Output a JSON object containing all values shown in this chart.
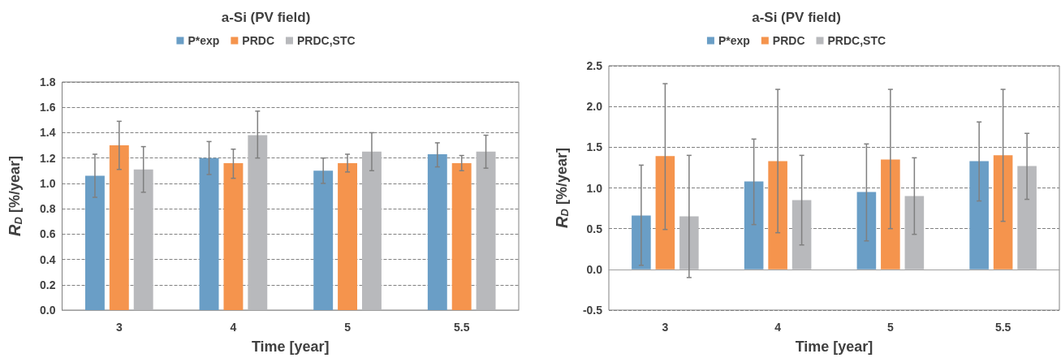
{
  "chart_data": [
    {
      "type": "bar",
      "title": "a-Si (PV field)",
      "xlabel": "Time [year]",
      "ylabel": "R$_{D}$ [%/year]",
      "categories": [
        "3",
        "4",
        "5",
        "5.5"
      ],
      "ylim": [
        0,
        1.8
      ],
      "yticks": [
        {
          "value": 0,
          "label": "0.0"
        },
        {
          "value": 0.2,
          "label": "0.2"
        },
        {
          "value": 0.4,
          "label": "0.4"
        },
        {
          "value": 0.6,
          "label": "0.6"
        },
        {
          "value": 0.8,
          "label": "0.8"
        },
        {
          "value": 1,
          "label": "1.0"
        },
        {
          "value": 1.2,
          "label": "1.2"
        },
        {
          "value": 1.4,
          "label": "1.4"
        },
        {
          "value": 1.6,
          "label": "1.6"
        },
        {
          "value": 1.8,
          "label": "1.8"
        }
      ],
      "grid": "y",
      "legend": "top",
      "series": [
        {
          "name": "P*exp",
          "color": "#6a9ec6",
          "values": [
            1.06,
            1.2,
            1.1,
            1.23
          ],
          "errors": [
            [
              0.89,
              1.23
            ],
            [
              1.07,
              1.33
            ],
            [
              1.0,
              1.2
            ],
            [
              1.13,
              1.32
            ]
          ]
        },
        {
          "name": "PRDC",
          "color": "#f5944d",
          "values": [
            1.3,
            1.16,
            1.16,
            1.16
          ],
          "errors": [
            [
              1.11,
              1.49
            ],
            [
              1.04,
              1.27
            ],
            [
              1.09,
              1.23
            ],
            [
              1.1,
              1.22
            ]
          ]
        },
        {
          "name": "PRDC,STC",
          "color": "#b8b9bc",
          "values": [
            1.11,
            1.38,
            1.25,
            1.25
          ],
          "errors": [
            [
              0.93,
              1.29
            ],
            [
              1.2,
              1.57
            ],
            [
              1.1,
              1.4
            ],
            [
              1.12,
              1.38
            ]
          ]
        }
      ]
    },
    {
      "type": "bar",
      "title": "a-Si (PV field)",
      "xlabel": "Time [year]",
      "ylabel": "R$_{D}$ [%/year]",
      "categories": [
        "3",
        "4",
        "5",
        "5.5"
      ],
      "ylim": [
        -0.5,
        2.5
      ],
      "yticks": [
        {
          "value": -0.5,
          "label": "-0.5"
        },
        {
          "value": 0,
          "label": "0.0"
        },
        {
          "value": 0.5,
          "label": "0.5"
        },
        {
          "value": 1,
          "label": "1.0"
        },
        {
          "value": 1.5,
          "label": "1.5"
        },
        {
          "value": 2,
          "label": "2.0"
        },
        {
          "value": 2.5,
          "label": "2.5"
        }
      ],
      "grid": "y",
      "legend": "top",
      "series": [
        {
          "name": "P*exp",
          "color": "#6a9ec6",
          "values": [
            0.66,
            1.08,
            0.95,
            1.33
          ],
          "errors": [
            [
              0.05,
              1.28
            ],
            [
              0.55,
              1.6
            ],
            [
              0.35,
              1.54
            ],
            [
              0.84,
              1.81
            ]
          ]
        },
        {
          "name": "PRDC",
          "color": "#f5944d",
          "values": [
            1.39,
            1.33,
            1.35,
            1.4
          ],
          "errors": [
            [
              0.49,
              2.28
            ],
            [
              0.45,
              2.21
            ],
            [
              0.5,
              2.21
            ],
            [
              0.59,
              2.21
            ]
          ]
        },
        {
          "name": "PRDC,STC",
          "color": "#b8b9bc",
          "values": [
            0.65,
            0.85,
            0.9,
            1.27
          ],
          "errors": [
            [
              -0.1,
              1.4
            ],
            [
              0.3,
              1.4
            ],
            [
              0.43,
              1.37
            ],
            [
              0.86,
              1.67
            ]
          ]
        }
      ]
    }
  ]
}
